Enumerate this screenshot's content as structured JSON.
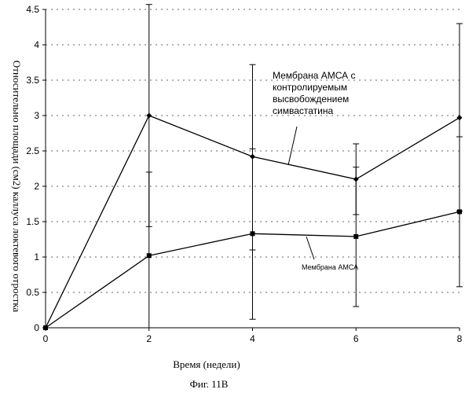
{
  "chart_data": {
    "type": "line",
    "xlabel": "Время (недели)",
    "ylabel": "Относительно площади (см2) каллуса локтевого отростка",
    "caption": "Фиг. 11В",
    "x": [
      0,
      2,
      4,
      6,
      8
    ],
    "xlim": [
      0,
      8
    ],
    "ylim": [
      0,
      4.5
    ],
    "xticks": [
      "0",
      "2",
      "4",
      "6",
      "8"
    ],
    "yticks": [
      "0",
      "0.5",
      "1",
      "1.5",
      "2",
      "2.5",
      "3",
      "3.5",
      "4",
      "4.5"
    ],
    "grid": "horizontal dotted",
    "series": [
      {
        "name": "Мембрана АМСА с контролируемым высвобождением симвастатина",
        "label_lines": [
          "Мембрана АМСА с",
          "контролируемым",
          "высвобождением",
          "симвастатина"
        ],
        "marker": "diamond",
        "values": [
          0,
          3.0,
          2.42,
          2.1,
          2.97
        ],
        "err_low": [
          0,
          1.43,
          1.1,
          1.6,
          1.65
        ],
        "err_high": [
          0,
          4.57,
          3.72,
          2.6,
          4.3
        ]
      },
      {
        "name": "Мембрана АМСА",
        "label_lines": [
          "Мембрана АМСА"
        ],
        "marker": "square",
        "values": [
          0,
          1.02,
          1.33,
          1.29,
          1.64
        ],
        "err_low": [
          0,
          0,
          0.12,
          0.3,
          0.58
        ],
        "err_high": [
          0,
          2.2,
          2.53,
          2.27,
          2.7
        ]
      }
    ]
  }
}
